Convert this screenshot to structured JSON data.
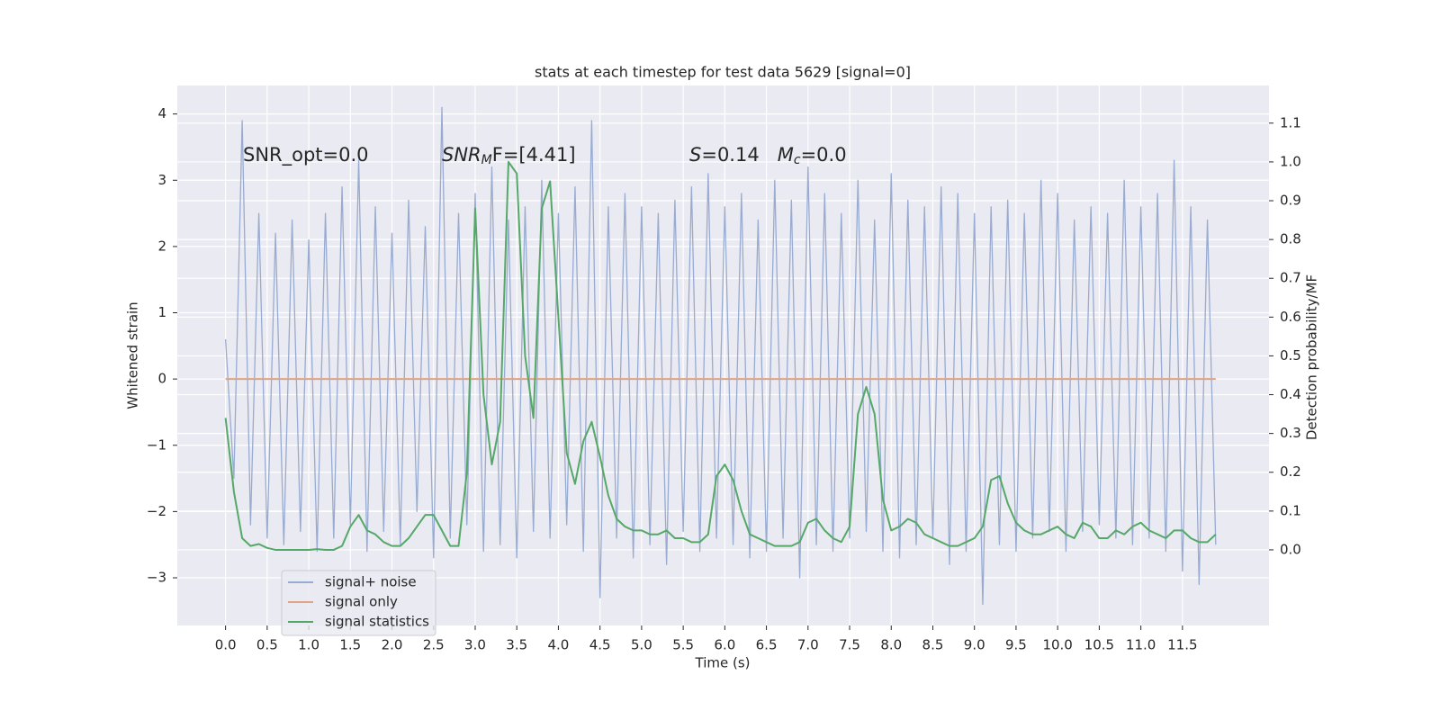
{
  "chart_data": {
    "type": "line",
    "title": "stats at each timestep for test data 5629 [signal=0]",
    "xlabel": "Time (s)",
    "ylabel": "Whitened strain",
    "y2label": "Detection probability/MF",
    "annotations": [
      {
        "parts": [
          {
            "text": "SNR_opt=0.0",
            "style": "normal"
          }
        ]
      },
      {
        "parts": [
          {
            "text": "SNR",
            "style": "italic"
          },
          {
            "text": "M",
            "style": "italic-sub"
          },
          {
            "text": "F=[4.41]",
            "style": "normal"
          }
        ]
      },
      {
        "parts": [
          {
            "text": "S",
            "style": "italic"
          },
          {
            "text": "=0.14   ",
            "style": "normal"
          },
          {
            "text": "M",
            "style": "italic"
          },
          {
            "text": "c",
            "style": "italic-sub"
          },
          {
            "text": "=0.0",
            "style": "normal"
          }
        ]
      }
    ],
    "x": [
      0.0,
      0.1,
      0.2,
      0.3,
      0.4,
      0.5,
      0.6,
      0.7,
      0.8,
      0.9,
      1.0,
      1.1,
      1.2,
      1.3,
      1.4,
      1.5,
      1.6,
      1.7,
      1.8,
      1.9,
      2.0,
      2.1,
      2.2,
      2.3,
      2.4,
      2.5,
      2.6,
      2.7,
      2.8,
      2.9,
      3.0,
      3.1,
      3.2,
      3.3,
      3.4,
      3.5,
      3.6,
      3.7,
      3.8,
      3.9,
      4.0,
      4.1,
      4.2,
      4.3,
      4.4,
      4.5,
      4.6,
      4.7,
      4.8,
      4.9,
      5.0,
      5.1,
      5.2,
      5.3,
      5.4,
      5.5,
      5.6,
      5.7,
      5.8,
      5.9,
      6.0,
      6.1,
      6.2,
      6.3,
      6.4,
      6.5,
      6.6,
      6.7,
      6.8,
      6.9,
      7.0,
      7.1,
      7.2,
      7.3,
      7.4,
      7.5,
      7.6,
      7.7,
      7.8,
      7.9,
      8.0,
      8.1,
      8.2,
      8.3,
      8.4,
      8.5,
      8.6,
      8.7,
      8.8,
      8.9,
      9.0,
      9.1,
      9.2,
      9.3,
      9.4,
      9.5,
      9.6,
      9.7,
      9.8,
      9.9,
      10.0,
      10.1,
      10.2,
      10.3,
      10.4,
      10.5,
      10.6,
      10.7,
      10.8,
      10.9,
      11.0,
      11.1,
      11.2,
      11.3,
      11.4,
      11.5,
      11.6,
      11.7,
      11.8,
      11.9
    ],
    "series": [
      {
        "name": "signal+ noise",
        "color": "#98abd0",
        "axis": "y",
        "values": [
          0.6,
          -1.5,
          3.9,
          -2.2,
          2.5,
          -2.4,
          2.2,
          -2.5,
          2.4,
          -2.3,
          2.1,
          -2.6,
          2.5,
          -2.4,
          2.9,
          -2.2,
          3.3,
          -2.6,
          2.6,
          -2.3,
          2.2,
          -2.5,
          2.7,
          -2.0,
          2.3,
          -2.7,
          4.1,
          -2.4,
          2.5,
          -2.2,
          2.8,
          -2.6,
          3.2,
          -2.5,
          2.4,
          -2.7,
          2.6,
          -2.3,
          3.0,
          -2.4,
          2.5,
          -2.2,
          2.9,
          -2.6,
          3.9,
          -3.3,
          2.6,
          -2.4,
          2.8,
          -2.7,
          2.6,
          -2.5,
          2.5,
          -2.8,
          2.7,
          -2.3,
          2.9,
          -2.6,
          3.1,
          -2.4,
          2.6,
          -2.5,
          2.8,
          -2.7,
          2.4,
          -2.6,
          3.0,
          -2.4,
          2.7,
          -3.0,
          3.2,
          -2.5,
          2.8,
          -2.6,
          2.5,
          -2.4,
          3.0,
          -2.3,
          2.4,
          -2.6,
          3.1,
          -2.7,
          2.7,
          -2.5,
          2.6,
          -2.4,
          2.9,
          -2.8,
          2.8,
          -2.6,
          2.5,
          -3.4,
          2.6,
          -2.5,
          2.7,
          -2.6,
          2.5,
          -2.4,
          3.0,
          -2.3,
          2.8,
          -2.6,
          2.4,
          -2.3,
          2.6,
          -2.2,
          2.5,
          -2.4,
          3.0,
          -2.5,
          2.6,
          -2.4,
          2.8,
          -2.6,
          3.3,
          -2.9,
          2.6,
          -3.1,
          2.4,
          -2.5
        ]
      },
      {
        "name": "signal only",
        "color": "#e0a385",
        "axis": "y",
        "values": [
          0,
          0,
          0,
          0,
          0,
          0,
          0,
          0,
          0,
          0,
          0,
          0,
          0,
          0,
          0,
          0,
          0,
          0,
          0,
          0,
          0,
          0,
          0,
          0,
          0,
          0,
          0,
          0,
          0,
          0,
          0,
          0,
          0,
          0,
          0,
          0,
          0,
          0,
          0,
          0,
          0,
          0,
          0,
          0,
          0,
          0,
          0,
          0,
          0,
          0,
          0,
          0,
          0,
          0,
          0,
          0,
          0,
          0,
          0,
          0,
          0,
          0,
          0,
          0,
          0,
          0,
          0,
          0,
          0,
          0,
          0,
          0,
          0,
          0,
          0,
          0,
          0,
          0,
          0,
          0,
          0,
          0,
          0,
          0,
          0,
          0,
          0,
          0,
          0,
          0,
          0,
          0,
          0,
          0,
          0,
          0,
          0,
          0,
          0,
          0,
          0,
          0,
          0,
          0,
          0,
          0,
          0,
          0,
          0,
          0,
          0,
          0,
          0,
          0,
          0,
          0,
          0,
          0,
          0,
          0
        ]
      },
      {
        "name": "signal statistics",
        "color": "#55a868",
        "axis": "y2",
        "values": [
          0.34,
          0.15,
          0.03,
          0.01,
          0.015,
          0.005,
          0.0,
          0.0,
          0.0,
          0.0,
          0.0,
          0.002,
          0.0,
          0.0,
          0.01,
          0.06,
          0.09,
          0.05,
          0.04,
          0.02,
          0.01,
          0.01,
          0.03,
          0.06,
          0.09,
          0.09,
          0.05,
          0.01,
          0.01,
          0.2,
          0.88,
          0.4,
          0.22,
          0.33,
          1.0,
          0.97,
          0.5,
          0.34,
          0.88,
          0.95,
          0.6,
          0.25,
          0.17,
          0.28,
          0.33,
          0.24,
          0.14,
          0.08,
          0.06,
          0.05,
          0.05,
          0.04,
          0.04,
          0.05,
          0.03,
          0.03,
          0.02,
          0.02,
          0.04,
          0.19,
          0.22,
          0.18,
          0.1,
          0.04,
          0.03,
          0.02,
          0.01,
          0.01,
          0.01,
          0.02,
          0.07,
          0.08,
          0.05,
          0.03,
          0.02,
          0.06,
          0.35,
          0.42,
          0.35,
          0.13,
          0.05,
          0.06,
          0.08,
          0.07,
          0.04,
          0.03,
          0.02,
          0.01,
          0.01,
          0.02,
          0.03,
          0.06,
          0.18,
          0.19,
          0.12,
          0.07,
          0.05,
          0.04,
          0.04,
          0.05,
          0.06,
          0.04,
          0.03,
          0.07,
          0.06,
          0.03,
          0.03,
          0.05,
          0.04,
          0.06,
          0.07,
          0.05,
          0.04,
          0.03,
          0.05,
          0.05,
          0.03,
          0.02,
          0.02,
          0.04
        ]
      }
    ],
    "xlim": [
      -0.58,
      12.54
    ],
    "xticks": [
      {
        "value": 0,
        "label": "0.0"
      },
      0.5,
      {
        "value": 1,
        "label": "1.0"
      },
      1.5,
      {
        "value": 2,
        "label": "2.0"
      },
      2.5,
      {
        "value": 3,
        "label": "3.0"
      },
      3.5,
      {
        "value": 4,
        "label": "4.0"
      },
      4.5,
      {
        "value": 5,
        "label": "5.0"
      },
      5.5,
      {
        "value": 6,
        "label": "6.0"
      },
      6.5,
      {
        "value": 7,
        "label": "7.0"
      },
      7.5,
      {
        "value": 8,
        "label": "8.0"
      },
      8.5,
      {
        "value": 9,
        "label": "9.0"
      },
      9.5,
      {
        "value": 10,
        "label": "10.0"
      },
      10.5,
      {
        "value": 11,
        "label": "11.0"
      },
      11.5
    ],
    "ylim": [
      -3.72,
      4.43
    ],
    "yticks": [
      {
        "value": -3,
        "label": "−3"
      },
      {
        "value": -2,
        "label": "−2"
      },
      {
        "value": -1,
        "label": "−1"
      },
      0,
      1,
      2,
      3,
      4
    ],
    "y2lim": [
      -0.195,
      1.197
    ],
    "y2ticks": [
      {
        "value": 0,
        "label": "0.0"
      },
      0.1,
      0.2,
      0.3,
      0.4,
      0.5,
      0.6,
      0.7,
      0.8,
      0.9,
      {
        "value": 1,
        "label": "1.0"
      },
      1.1
    ],
    "grid": true,
    "legend": "lower left"
  }
}
